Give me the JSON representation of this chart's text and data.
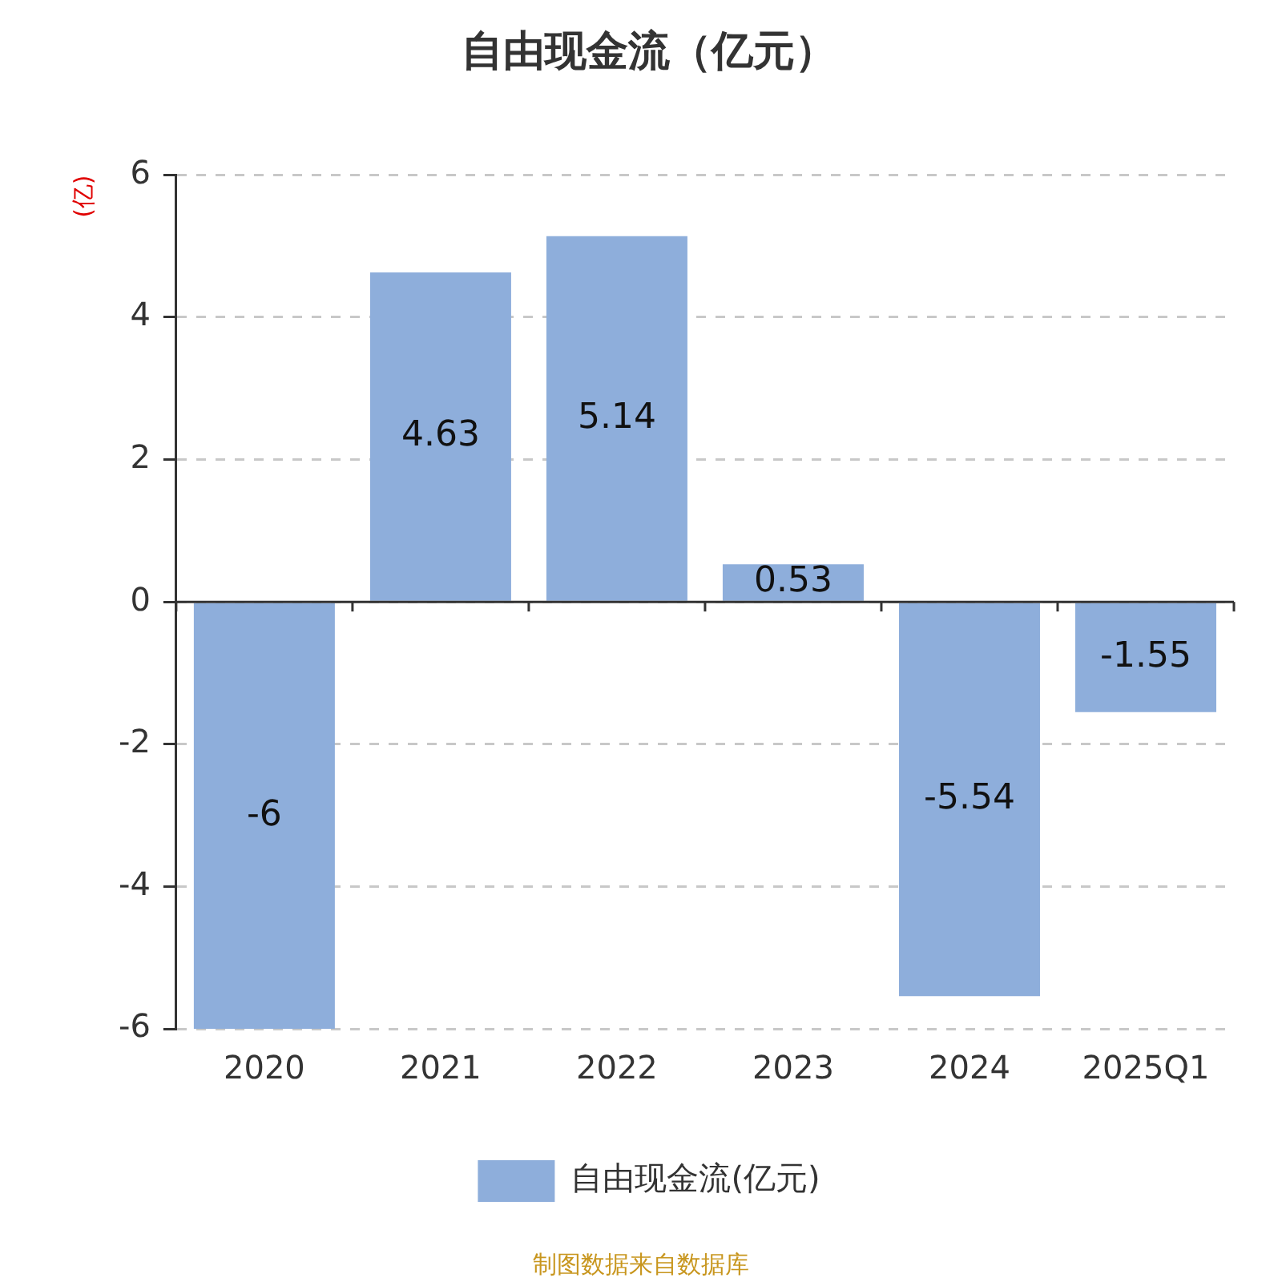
{
  "chart_data": {
    "type": "bar",
    "title": "自由现金流（亿元）",
    "ylabel": "(亿)",
    "categories": [
      "2020",
      "2021",
      "2022",
      "2023",
      "2024",
      "2025Q1"
    ],
    "series": [
      {
        "name": "自由现金流(亿元)",
        "color": "#8eaedb",
        "values": [
          -6,
          4.63,
          5.14,
          0.53,
          -5.54,
          -1.55
        ]
      }
    ],
    "ylim": [
      -6,
      6
    ],
    "yticks": [
      -6,
      -4,
      -2,
      0,
      2,
      4,
      6
    ],
    "grid": "y",
    "legend": "bottom",
    "data_labels": true,
    "annotations": [
      "制图数据来自数据库"
    ]
  }
}
